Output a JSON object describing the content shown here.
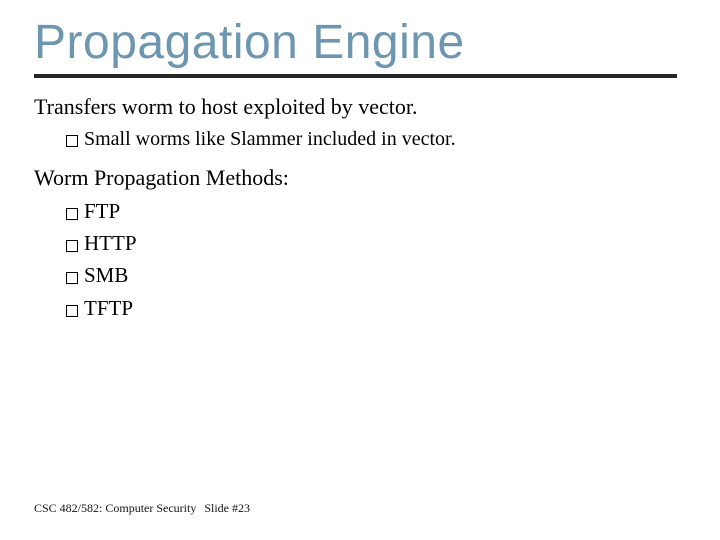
{
  "title": "Propagation Engine",
  "colors": {
    "title": "#6d96b0",
    "rule": "#262626",
    "text": "#000000",
    "background": "#ffffff"
  },
  "body": {
    "line1": "Transfers worm to host exploited by vector.",
    "sub1": "Small worms like Slammer included in vector.",
    "line2": "Worm Propagation Methods:",
    "methods": [
      "FTP",
      "HTTP",
      "SMB",
      "TFTP"
    ]
  },
  "footer": {
    "course": "CSC 482/582: Computer Security",
    "slide": "Slide #23"
  }
}
